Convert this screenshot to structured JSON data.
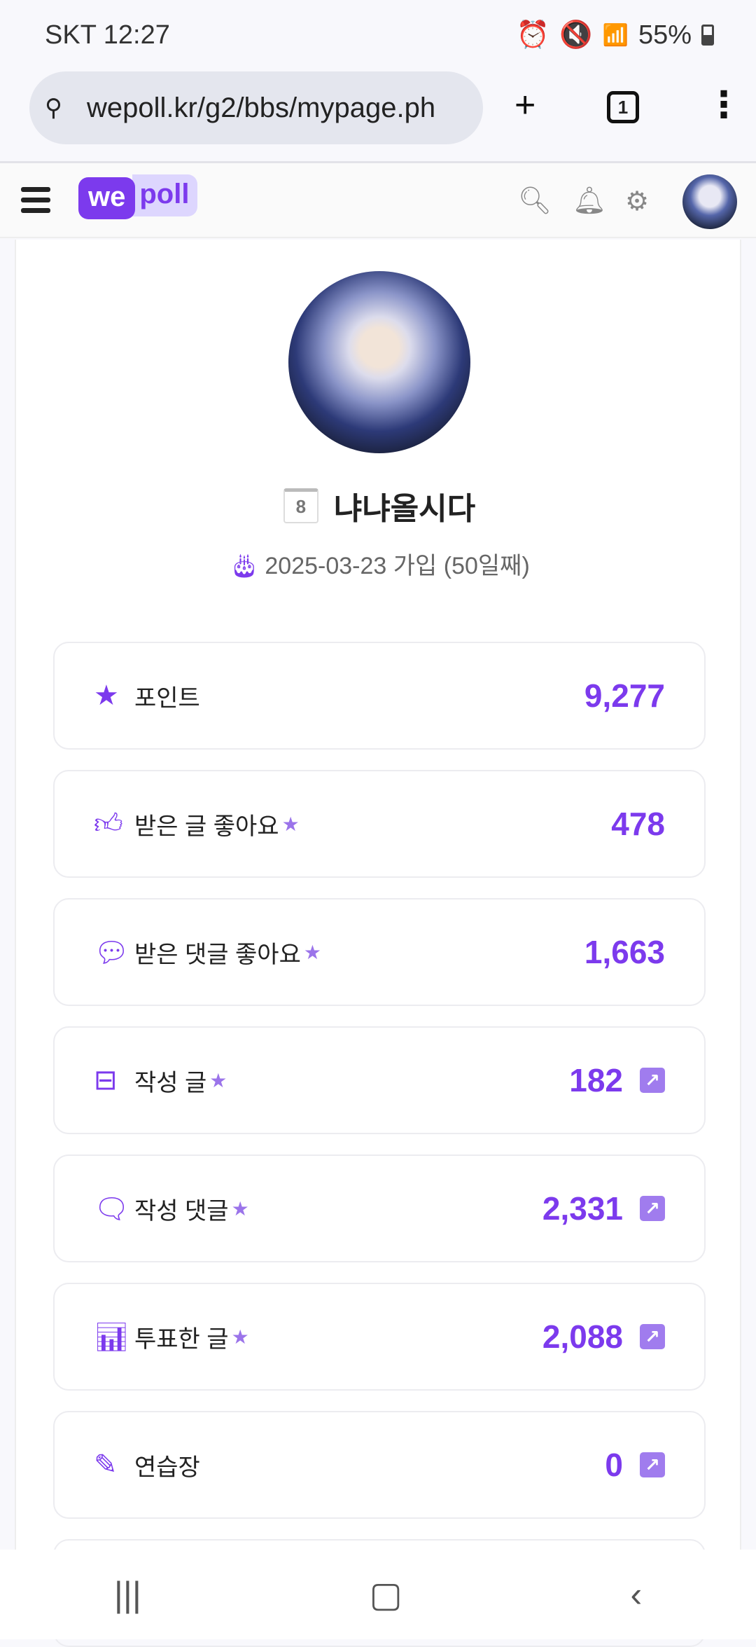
{
  "status_bar": {
    "carrier_time": "SKT 12:27",
    "battery": "55%",
    "icons": [
      "alarm-icon",
      "mute-icon",
      "wifi-icon",
      "signal-icon",
      "battery-icon"
    ]
  },
  "browser": {
    "url": "wepoll.kr/g2/bbs/mypage.ph",
    "tab_count": "1"
  },
  "site_header": {
    "logo_we": "we",
    "logo_poll": "poll"
  },
  "profile": {
    "level": "8",
    "username": "냐냐올시다",
    "joined": "2025-03-23 가입 (50일째)"
  },
  "stats": [
    {
      "icon": "star-icon",
      "label": "포인트",
      "value": "9,277",
      "starred": false,
      "link": false
    },
    {
      "icon": "thumbs-up-icon",
      "label": "받은 글 좋아요",
      "value": "478",
      "starred": true,
      "link": false
    },
    {
      "icon": "chat-dots-icon",
      "label": "받은 댓글 좋아요",
      "value": "1,663",
      "starred": true,
      "link": false
    },
    {
      "icon": "archive-icon",
      "label": "작성 글",
      "value": "182",
      "starred": true,
      "link": true
    },
    {
      "icon": "comment-icon",
      "label": "작성 댓글",
      "value": "2,331",
      "starred": true,
      "link": true
    },
    {
      "icon": "bar-chart-icon",
      "label": "투표한 글",
      "value": "2,088",
      "starred": true,
      "link": true
    },
    {
      "icon": "edit-icon",
      "label": "연습장",
      "value": "0",
      "starred": false,
      "link": true
    }
  ],
  "colors": {
    "accent": "#7c3aed",
    "accent_light": "#a07cee"
  }
}
